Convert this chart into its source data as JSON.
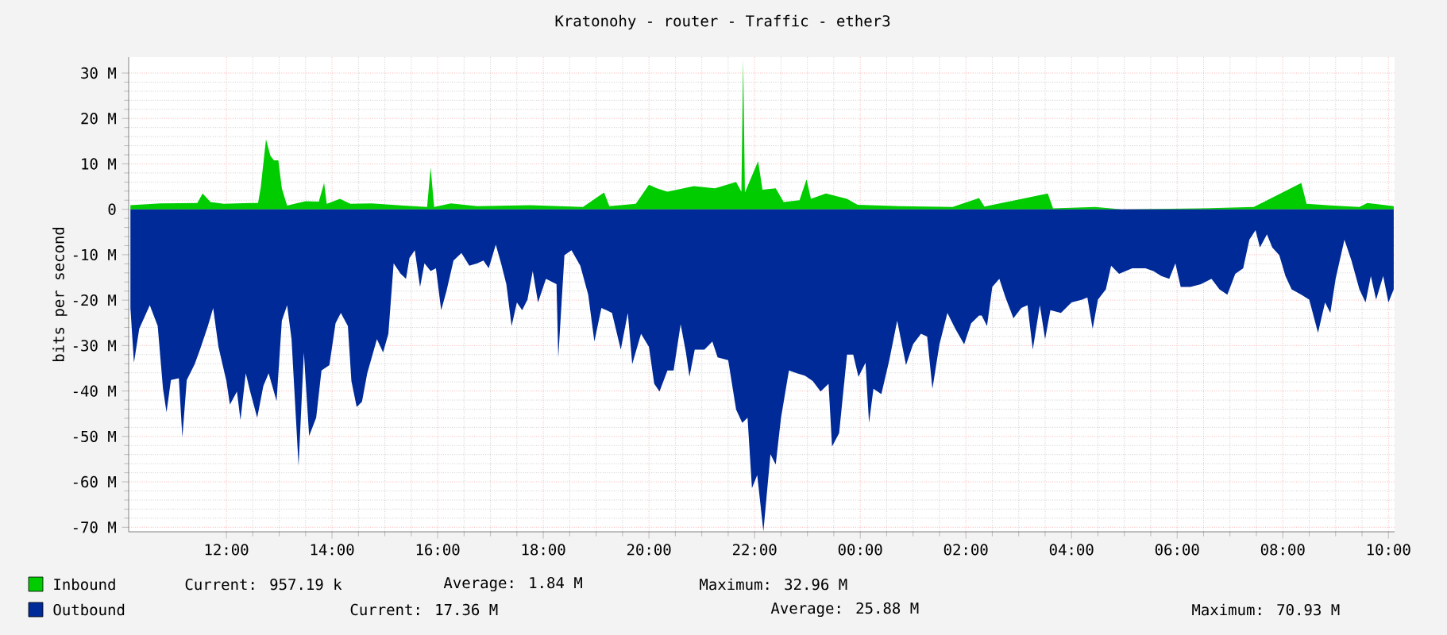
{
  "chart_data": {
    "type": "area",
    "title": "Kratonohy - router - Traffic - ether3",
    "ylabel": "bits per second",
    "xlim": [
      "2000-01-01T10:09",
      "2000-01-02T10:07"
    ],
    "ylim": [
      -71,
      33.5
    ],
    "xticks": [
      {
        "value": "2000-01-01T12:00",
        "label": "12:00"
      },
      {
        "value": "2000-01-01T14:00",
        "label": "14:00"
      },
      {
        "value": "2000-01-01T16:00",
        "label": "16:00"
      },
      {
        "value": "2000-01-01T18:00",
        "label": "18:00"
      },
      {
        "value": "2000-01-01T20:00",
        "label": "20:00"
      },
      {
        "value": "2000-01-01T22:00",
        "label": "22:00"
      },
      {
        "value": "2000-01-02T00:00",
        "label": "00:00"
      },
      {
        "value": "2000-01-02T02:00",
        "label": "02:00"
      },
      {
        "value": "2000-01-02T04:00",
        "label": "04:00"
      },
      {
        "value": "2000-01-02T06:00",
        "label": "06:00"
      },
      {
        "value": "2000-01-02T08:00",
        "label": "08:00"
      },
      {
        "value": "2000-01-02T10:00",
        "label": "10:00"
      }
    ],
    "yticks": [
      {
        "value": 30,
        "label": "30 M"
      },
      {
        "value": 20,
        "label": "20 M"
      },
      {
        "value": 10,
        "label": "10 M"
      },
      0,
      {
        "value": -10,
        "label": "-10 M"
      },
      {
        "value": -20,
        "label": "-20 M"
      },
      {
        "value": -30,
        "label": "-30 M"
      },
      {
        "value": -40,
        "label": "-40 M"
      },
      {
        "value": -50,
        "label": "-50 M"
      },
      {
        "value": -60,
        "label": "-60 M"
      },
      {
        "value": -70,
        "label": "-70 M"
      }
    ],
    "grid": true,
    "legend": "bottom",
    "series": [
      {
        "name": "Inbound",
        "color": "#00cc00",
        "x": [
          "2000-01-01T10:11",
          "2000-01-01T10:45",
          "2000-01-01T11:27",
          "2000-01-01T11:33",
          "2000-01-01T11:42",
          "2000-01-01T11:57",
          "2000-01-01T12:27",
          "2000-01-01T12:36",
          "2000-01-01T12:39",
          "2000-01-01T12:45",
          "2000-01-01T12:50",
          "2000-01-01T12:54",
          "2000-01-01T12:59",
          "2000-01-01T13:03",
          "2000-01-01T13:09",
          "2000-01-01T13:30",
          "2000-01-01T13:45",
          "2000-01-01T13:51",
          "2000-01-01T13:54",
          "2000-01-01T14:09",
          "2000-01-01T14:21",
          "2000-01-01T14:45",
          "2000-01-01T15:21",
          "2000-01-01T15:48",
          "2000-01-01T15:52",
          "2000-01-01T15:56",
          "2000-01-01T16:15",
          "2000-01-01T16:45",
          "2000-01-01T17:45",
          "2000-01-01T18:45",
          "2000-01-01T19:09",
          "2000-01-01T19:15",
          "2000-01-01T19:45",
          "2000-01-01T20:00",
          "2000-01-01T20:09",
          "2000-01-01T20:21",
          "2000-01-01T20:51",
          "2000-01-01T21:15",
          "2000-01-01T21:39",
          "2000-01-01T21:45",
          "2000-01-01T21:47",
          "2000-01-01T21:49",
          "2000-01-01T22:04",
          "2000-01-01T22:09",
          "2000-01-01T22:24",
          "2000-01-01T22:33",
          "2000-01-01T22:51",
          "2000-01-01T22:59",
          "2000-01-01T23:04",
          "2000-01-01T23:21",
          "2000-01-01T23:45",
          "2000-01-01T23:57",
          "2000-01-02T00:45",
          "2000-01-02T01:45",
          "2000-01-02T02:15",
          "2000-01-02T02:21",
          "2000-01-02T03:33",
          "2000-01-02T03:39",
          "2000-01-02T04:27",
          "2000-01-02T04:57",
          "2000-01-02T06:27",
          "2000-01-02T07:27",
          "2000-01-02T08:21",
          "2000-01-02T08:27",
          "2000-01-02T08:57",
          "2000-01-02T09:27",
          "2000-01-02T09:36",
          "2000-01-02T09:57",
          "2000-01-02T10:06"
        ],
        "values": [
          0.9,
          1.3,
          1.4,
          3.5,
          1.6,
          1.2,
          1.4,
          1.4,
          4.8,
          15.4,
          11.8,
          10.8,
          10.8,
          4.6,
          0.8,
          1.8,
          1.7,
          5.8,
          1.2,
          2.3,
          1.2,
          1.3,
          0.8,
          0.5,
          9.2,
          0.5,
          1.3,
          0.7,
          0.9,
          0.5,
          3.7,
          0.7,
          1.2,
          5.4,
          4.6,
          3.9,
          5.1,
          4.6,
          6.0,
          3.9,
          33.0,
          3.7,
          10.6,
          4.3,
          4.6,
          1.6,
          2.0,
          6.6,
          2.3,
          3.5,
          2.3,
          1.0,
          0.7,
          0.5,
          2.5,
          0.6,
          3.5,
          0.2,
          0.5,
          0.0,
          0.2,
          0.5,
          5.8,
          1.2,
          0.8,
          0.5,
          1.4,
          0.9,
          0.7
        ]
      },
      {
        "name": "Outbound",
        "color": "#002a97",
        "x": [
          "2000-01-01T10:11",
          "2000-01-01T10:15",
          "2000-01-01T10:21",
          "2000-01-01T10:33",
          "2000-01-01T10:42",
          "2000-01-01T10:48",
          "2000-01-01T10:52",
          "2000-01-01T10:57",
          "2000-01-01T11:06",
          "2000-01-01T11:10",
          "2000-01-01T11:15",
          "2000-01-01T11:24",
          "2000-01-01T11:30",
          "2000-01-01T11:39",
          "2000-01-01T11:45",
          "2000-01-01T11:51",
          "2000-01-01T12:00",
          "2000-01-01T12:04",
          "2000-01-01T12:12",
          "2000-01-01T12:16",
          "2000-01-01T12:22",
          "2000-01-01T12:27",
          "2000-01-01T12:35",
          "2000-01-01T12:42",
          "2000-01-01T12:48",
          "2000-01-01T12:57",
          "2000-01-01T13:03",
          "2000-01-01T13:09",
          "2000-01-01T13:14",
          "2000-01-01T13:22",
          "2000-01-01T13:28",
          "2000-01-01T13:34",
          "2000-01-01T13:42",
          "2000-01-01T13:48",
          "2000-01-01T13:57",
          "2000-01-01T14:04",
          "2000-01-01T14:10",
          "2000-01-01T14:18",
          "2000-01-01T14:22",
          "2000-01-01T14:28",
          "2000-01-01T14:34",
          "2000-01-01T14:40",
          "2000-01-01T14:51",
          "2000-01-01T14:58",
          "2000-01-01T15:04",
          "2000-01-01T15:10",
          "2000-01-01T15:18",
          "2000-01-01T15:24",
          "2000-01-01T15:28",
          "2000-01-01T15:34",
          "2000-01-01T15:40",
          "2000-01-01T15:45",
          "2000-01-01T15:52",
          "2000-01-01T15:58",
          "2000-01-01T16:04",
          "2000-01-01T16:10",
          "2000-01-01T16:18",
          "2000-01-01T16:27",
          "2000-01-01T16:36",
          "2000-01-01T16:45",
          "2000-01-01T16:52",
          "2000-01-01T16:58",
          "2000-01-01T17:06",
          "2000-01-01T17:12",
          "2000-01-01T17:18",
          "2000-01-01T17:24",
          "2000-01-01T17:30",
          "2000-01-01T17:36",
          "2000-01-01T17:42",
          "2000-01-01T17:48",
          "2000-01-01T17:54",
          "2000-01-01T18:03",
          "2000-01-01T18:15",
          "2000-01-01T18:17",
          "2000-01-01T18:24",
          "2000-01-01T18:32",
          "2000-01-01T18:42",
          "2000-01-01T18:51",
          "2000-01-01T18:58",
          "2000-01-01T19:06",
          "2000-01-01T19:18",
          "2000-01-01T19:28",
          "2000-01-01T19:36",
          "2000-01-01T19:41",
          "2000-01-01T19:51",
          "2000-01-01T20:00",
          "2000-01-01T20:06",
          "2000-01-01T20:12",
          "2000-01-01T20:21",
          "2000-01-01T20:28",
          "2000-01-01T20:36",
          "2000-01-01T20:42",
          "2000-01-01T20:46",
          "2000-01-01T20:52",
          "2000-01-01T21:03",
          "2000-01-01T21:12",
          "2000-01-01T21:18",
          "2000-01-01T21:30",
          "2000-01-01T21:39",
          "2000-01-01T21:46",
          "2000-01-01T21:52",
          "2000-01-01T21:57",
          "2000-01-01T22:03",
          "2000-01-01T22:10",
          "2000-01-01T22:18",
          "2000-01-01T22:24",
          "2000-01-01T22:30",
          "2000-01-01T22:39",
          "2000-01-01T22:48",
          "2000-01-01T22:57",
          "2000-01-01T23:06",
          "2000-01-01T23:15",
          "2000-01-01T23:24",
          "2000-01-01T23:28",
          "2000-01-01T23:36",
          "2000-01-01T23:45",
          "2000-01-01T23:52",
          "2000-01-01T23:58",
          "2000-01-02T00:06",
          "2000-01-02T00:10",
          "2000-01-02T00:15",
          "2000-01-02T00:24",
          "2000-01-02T00:33",
          "2000-01-02T00:42",
          "2000-01-02T00:52",
          "2000-01-02T01:00",
          "2000-01-02T01:09",
          "2000-01-02T01:16",
          "2000-01-02T01:22",
          "2000-01-02T01:30",
          "2000-01-02T01:39",
          "2000-01-02T01:48",
          "2000-01-02T01:58",
          "2000-01-02T02:06",
          "2000-01-02T02:15",
          "2000-01-02T02:18",
          "2000-01-02T02:24",
          "2000-01-02T02:30",
          "2000-01-02T02:38",
          "2000-01-02T02:45",
          "2000-01-02T02:54",
          "2000-01-02T03:03",
          "2000-01-02T03:10",
          "2000-01-02T03:16",
          "2000-01-02T03:24",
          "2000-01-02T03:30",
          "2000-01-02T03:36",
          "2000-01-02T03:48",
          "2000-01-02T04:00",
          "2000-01-02T04:12",
          "2000-01-02T04:18",
          "2000-01-02T04:24",
          "2000-01-02T04:30",
          "2000-01-02T04:39",
          "2000-01-02T04:45",
          "2000-01-02T04:54",
          "2000-01-02T05:09",
          "2000-01-02T05:24",
          "2000-01-02T05:33",
          "2000-01-02T05:42",
          "2000-01-02T05:51",
          "2000-01-02T05:58",
          "2000-01-02T06:04",
          "2000-01-02T06:15",
          "2000-01-02T06:27",
          "2000-01-02T06:39",
          "2000-01-02T06:48",
          "2000-01-02T06:57",
          "2000-01-02T07:06",
          "2000-01-02T07:15",
          "2000-01-02T07:22",
          "2000-01-02T07:29",
          "2000-01-02T07:34",
          "2000-01-02T07:42",
          "2000-01-02T07:48",
          "2000-01-02T07:56",
          "2000-01-02T08:03",
          "2000-01-02T08:10",
          "2000-01-02T08:21",
          "2000-01-02T08:30",
          "2000-01-02T08:40",
          "2000-01-02T08:48",
          "2000-01-02T08:54",
          "2000-01-02T09:00",
          "2000-01-02T09:10",
          "2000-01-02T09:18",
          "2000-01-02T09:27",
          "2000-01-02T09:34",
          "2000-01-02T09:40",
          "2000-01-02T09:46",
          "2000-01-02T09:54",
          "2000-01-02T10:00",
          "2000-01-02T10:06"
        ],
        "values": [
          -21.7,
          -33.8,
          -26.3,
          -21.1,
          -25.7,
          -39.5,
          -44.7,
          -37.6,
          -37.2,
          -50.2,
          -37.6,
          -34.1,
          -30.9,
          -25.7,
          -21.7,
          -30.3,
          -37.8,
          -43.0,
          -40.1,
          -46.4,
          -36.1,
          -40.1,
          -45.9,
          -38.9,
          -36.1,
          -42.2,
          -24.5,
          -21.1,
          -28.6,
          -56.5,
          -31.5,
          -49.9,
          -45.9,
          -35.5,
          -34.3,
          -25.1,
          -22.8,
          -25.7,
          -37.8,
          -43.5,
          -42.4,
          -36.1,
          -28.6,
          -31.5,
          -27.4,
          -11.9,
          -14.2,
          -15.3,
          -10.7,
          -9.0,
          -17.1,
          -11.9,
          -13.6,
          -13.0,
          -22.2,
          -18.0,
          -11.3,
          -9.6,
          -12.4,
          -11.9,
          -11.3,
          -13.0,
          -7.8,
          -11.9,
          -16.5,
          -25.7,
          -20.5,
          -22.2,
          -19.9,
          -13.6,
          -20.5,
          -15.3,
          -16.5,
          -32.6,
          -10.1,
          -9.0,
          -12.4,
          -18.8,
          -29.1,
          -21.7,
          -22.8,
          -30.9,
          -22.8,
          -34.1,
          -27.4,
          -30.3,
          -38.4,
          -40.1,
          -35.5,
          -35.5,
          -25.3,
          -31.5,
          -36.9,
          -30.9,
          -30.9,
          -29.1,
          -32.6,
          -33.2,
          -44.1,
          -47.0,
          -45.9,
          -61.4,
          -58.5,
          -70.9,
          -53.9,
          -56.2,
          -45.9,
          -35.5,
          -36.1,
          -36.6,
          -37.8,
          -40.1,
          -38.4,
          -52.2,
          -49.3,
          -32.0,
          -32.0,
          -36.9,
          -33.8,
          -47.0,
          -39.5,
          -40.7,
          -33.2,
          -24.5,
          -34.3,
          -29.7,
          -27.4,
          -28.0,
          -39.5,
          -29.7,
          -22.8,
          -26.3,
          -29.7,
          -25.1,
          -23.4,
          -23.4,
          -25.7,
          -17.1,
          -15.3,
          -19.4,
          -24.0,
          -21.7,
          -21.1,
          -30.9,
          -21.1,
          -28.6,
          -22.2,
          -22.8,
          -20.5,
          -19.9,
          -19.4,
          -26.3,
          -19.9,
          -17.6,
          -12.4,
          -14.2,
          -13.0,
          -13.0,
          -13.6,
          -14.7,
          -15.3,
          -11.9,
          -17.1,
          -17.1,
          -16.5,
          -15.3,
          -17.6,
          -18.8,
          -14.2,
          -13.0,
          -6.7,
          -4.6,
          -8.4,
          -5.5,
          -8.4,
          -10.1,
          -14.7,
          -17.6,
          -18.8,
          -19.9,
          -27.2,
          -20.5,
          -22.8,
          -15.3,
          -6.7,
          -11.3,
          -17.6,
          -20.5,
          -14.7,
          -19.9,
          -14.7,
          -20.5,
          -17.6
        ]
      }
    ],
    "annotations": [
      "Current: 957.19 k",
      "Average: 1.84 M",
      "Maximum: 32.96 M",
      "Current: 17.36 M",
      "Average: 25.88 M",
      "Maximum: 70.93 M"
    ]
  }
}
